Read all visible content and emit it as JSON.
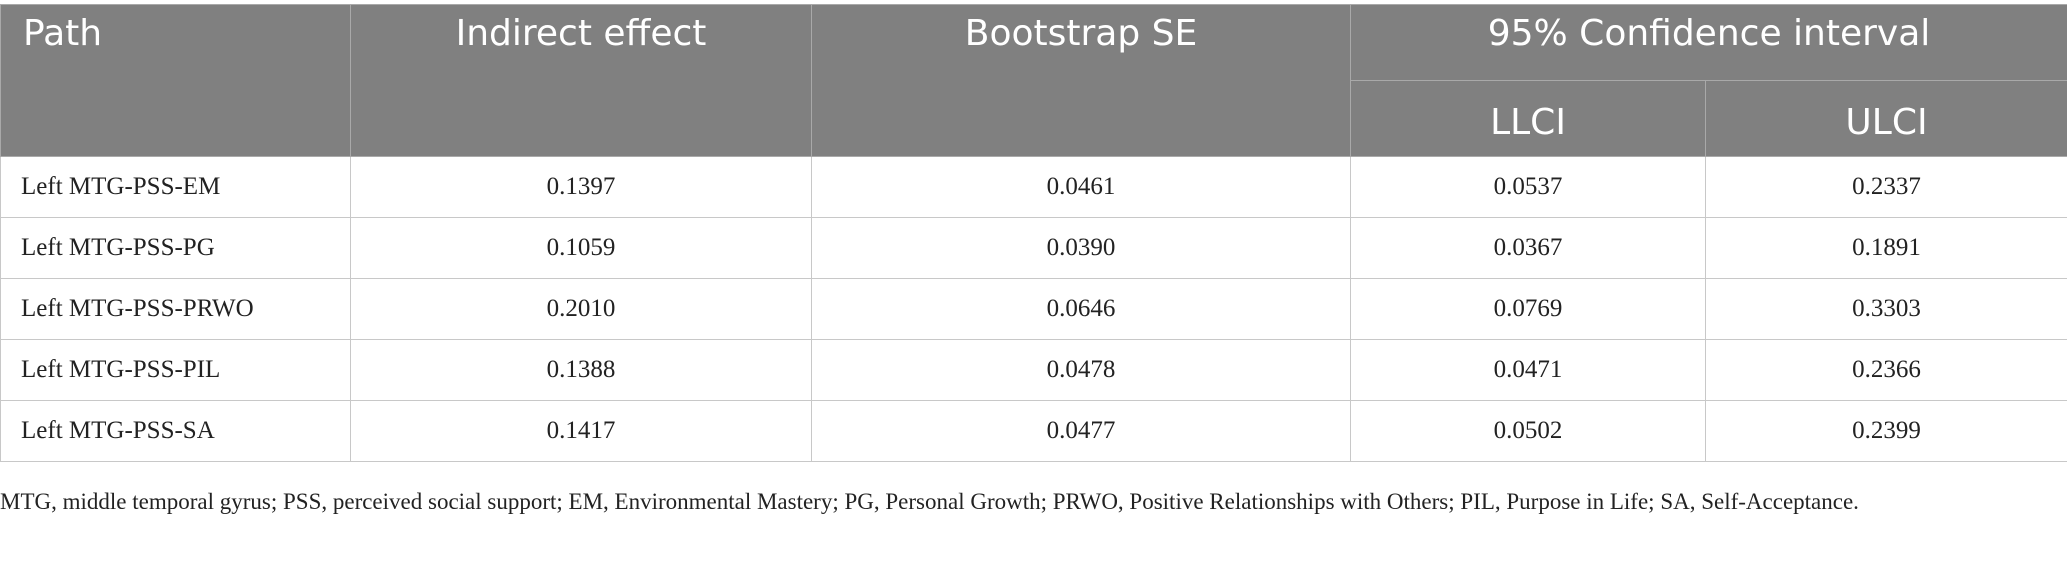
{
  "table": {
    "headers": {
      "path": "Path",
      "indirect_effect": "Indirect effect",
      "bootstrap_se": "Bootstrap SE",
      "ci_group": "95% Confidence interval",
      "llci": "LLCI",
      "ulci": "ULCI"
    },
    "rows": [
      {
        "path": "Left MTG-PSS-EM",
        "indirect_effect": "0.1397",
        "bootstrap_se": "0.0461",
        "llci": "0.0537",
        "ulci": "0.2337"
      },
      {
        "path": "Left MTG-PSS-PG",
        "indirect_effect": "0.1059",
        "bootstrap_se": "0.0390",
        "llci": "0.0367",
        "ulci": "0.1891"
      },
      {
        "path": "Left MTG-PSS-PRWO",
        "indirect_effect": "0.2010",
        "bootstrap_se": "0.0646",
        "llci": "0.0769",
        "ulci": "0.3303"
      },
      {
        "path": "Left MTG-PSS-PIL",
        "indirect_effect": "0.1388",
        "bootstrap_se": "0.0478",
        "llci": "0.0471",
        "ulci": "0.2366"
      },
      {
        "path": "Left MTG-PSS-SA",
        "indirect_effect": "0.1417",
        "bootstrap_se": "0.0477",
        "llci": "0.0502",
        "ulci": "0.2399"
      }
    ]
  },
  "footnote": "MTG, middle temporal gyrus; PSS, perceived social support; EM, Environmental Mastery; PG, Personal Growth; PRWO, Positive Relationships with Others; PIL, Purpose in Life; SA, Self-Acceptance.",
  "colors": {
    "header_bg": "#808080",
    "header_text": "#ffffff",
    "body_text": "#222222",
    "grid": "#c8c8c8"
  }
}
